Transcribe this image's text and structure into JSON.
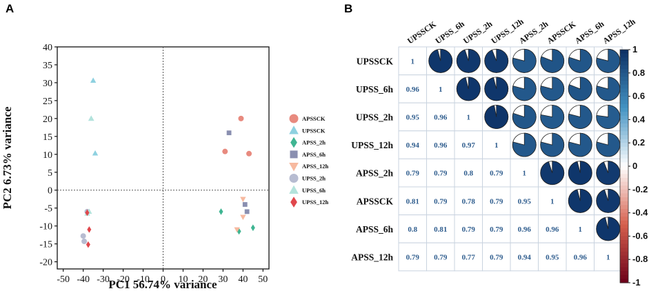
{
  "panels": {
    "a": "A",
    "b": "B"
  },
  "chart_data": [
    {
      "type": "scatter",
      "panel": "A",
      "xlabel": "PC1 56.74% variance",
      "ylabel": "PC2 6.73% variance",
      "xlim": [
        -53,
        53
      ],
      "ylim": [
        -22,
        40
      ],
      "xticks": [
        -50,
        -40,
        -30,
        -20,
        -10,
        0,
        10,
        20,
        30,
        40,
        50
      ],
      "yticks": [
        40,
        35,
        30,
        25,
        20,
        15,
        10,
        5,
        0,
        -5,
        -10,
        -15,
        -20
      ],
      "reference_lines": {
        "x": 0,
        "y": 0,
        "style": "dotted"
      },
      "legend": [
        {
          "name": "APSSCK",
          "color": "#e88a7f",
          "marker": "circle"
        },
        {
          "name": "UPSSCK",
          "color": "#8ed1e0",
          "marker": "triangle"
        },
        {
          "name": "APSS_2h",
          "color": "#3fb592",
          "marker": "diamond"
        },
        {
          "name": "APSS_6h",
          "color": "#8a8fb0",
          "marker": "square"
        },
        {
          "name": "APSS_12h",
          "color": "#f7b99f",
          "marker": "triangle-down"
        },
        {
          "name": "UPSS_2h",
          "color": "#b7bcd1",
          "marker": "circle"
        },
        {
          "name": "UPSS_6h",
          "color": "#b3e3dc",
          "marker": "triangle"
        },
        {
          "name": "UPSS_12h",
          "color": "#e0474c",
          "marker": "diamond"
        }
      ],
      "series": [
        {
          "name": "APSSCK",
          "points": [
            [
              39,
              20
            ],
            [
              31,
              10.8
            ],
            [
              43,
              10.2
            ]
          ]
        },
        {
          "name": "UPSSCK",
          "points": [
            [
              -35,
              30.6
            ],
            [
              -36,
              20
            ],
            [
              -34,
              10.3
            ]
          ]
        },
        {
          "name": "APSS_2h",
          "points": [
            [
              29,
              -6
            ],
            [
              38,
              -11.5
            ],
            [
              45,
              -10.5
            ]
          ]
        },
        {
          "name": "APSS_6h",
          "points": [
            [
              33,
              16
            ],
            [
              41,
              -4
            ],
            [
              42,
              -6
            ]
          ]
        },
        {
          "name": "APSS_12h",
          "points": [
            [
              40,
              -2.5
            ],
            [
              40,
              -7.5
            ],
            [
              37,
              -11
            ]
          ]
        },
        {
          "name": "UPSS_2h",
          "points": [
            [
              -40,
              -12.8
            ],
            [
              -39.5,
              -14.3
            ],
            [
              -38,
              -6
            ]
          ]
        },
        {
          "name": "UPSS_6h",
          "points": [
            [
              -36,
              20
            ],
            [
              -37,
              -6
            ],
            [
              -38,
              -6.5
            ]
          ]
        },
        {
          "name": "UPSS_12h",
          "points": [
            [
              -38,
              -6.3
            ],
            [
              -37,
              -11
            ],
            [
              -37.5,
              -15.2
            ]
          ]
        }
      ]
    },
    {
      "type": "heatmap",
      "panel": "B",
      "labels": [
        "UPSSCK",
        "UPSS_6h",
        "UPSS_2h",
        "UPSS_12h",
        "APSS_2h",
        "APSSCK",
        "APSS_6h",
        "APSS_12h"
      ],
      "values": [
        [
          1,
          0.96,
          0.95,
          0.94,
          0.79,
          0.81,
          0.8,
          0.79
        ],
        [
          0.96,
          1,
          0.96,
          0.96,
          0.79,
          0.79,
          0.81,
          0.79
        ],
        [
          0.95,
          0.96,
          1,
          0.97,
          0.8,
          0.78,
          0.79,
          0.77
        ],
        [
          0.94,
          0.96,
          0.97,
          1,
          0.79,
          0.79,
          0.79,
          0.79
        ],
        [
          0.79,
          0.79,
          0.8,
          0.79,
          1,
          0.95,
          0.96,
          0.94
        ],
        [
          0.81,
          0.79,
          0.78,
          0.79,
          0.95,
          1,
          0.96,
          0.95
        ],
        [
          0.8,
          0.81,
          0.79,
          0.79,
          0.96,
          0.96,
          1,
          0.96
        ],
        [
          0.79,
          0.79,
          0.77,
          0.79,
          0.94,
          0.95,
          0.96,
          1
        ]
      ],
      "lower_triangle": "numbers",
      "upper_triangle": "pie",
      "colorbar": {
        "range": [
          -1,
          1
        ],
        "ticks": [
          "1",
          "0.8",
          "0.6",
          "0.4",
          "0.2",
          "0",
          "-0.2",
          "-0.4",
          "-0.6",
          "-0.8",
          "-1"
        ],
        "colors": {
          "high": "#0b2e63",
          "mid": "#ffffff",
          "low": "#6b0019"
        }
      }
    }
  ]
}
